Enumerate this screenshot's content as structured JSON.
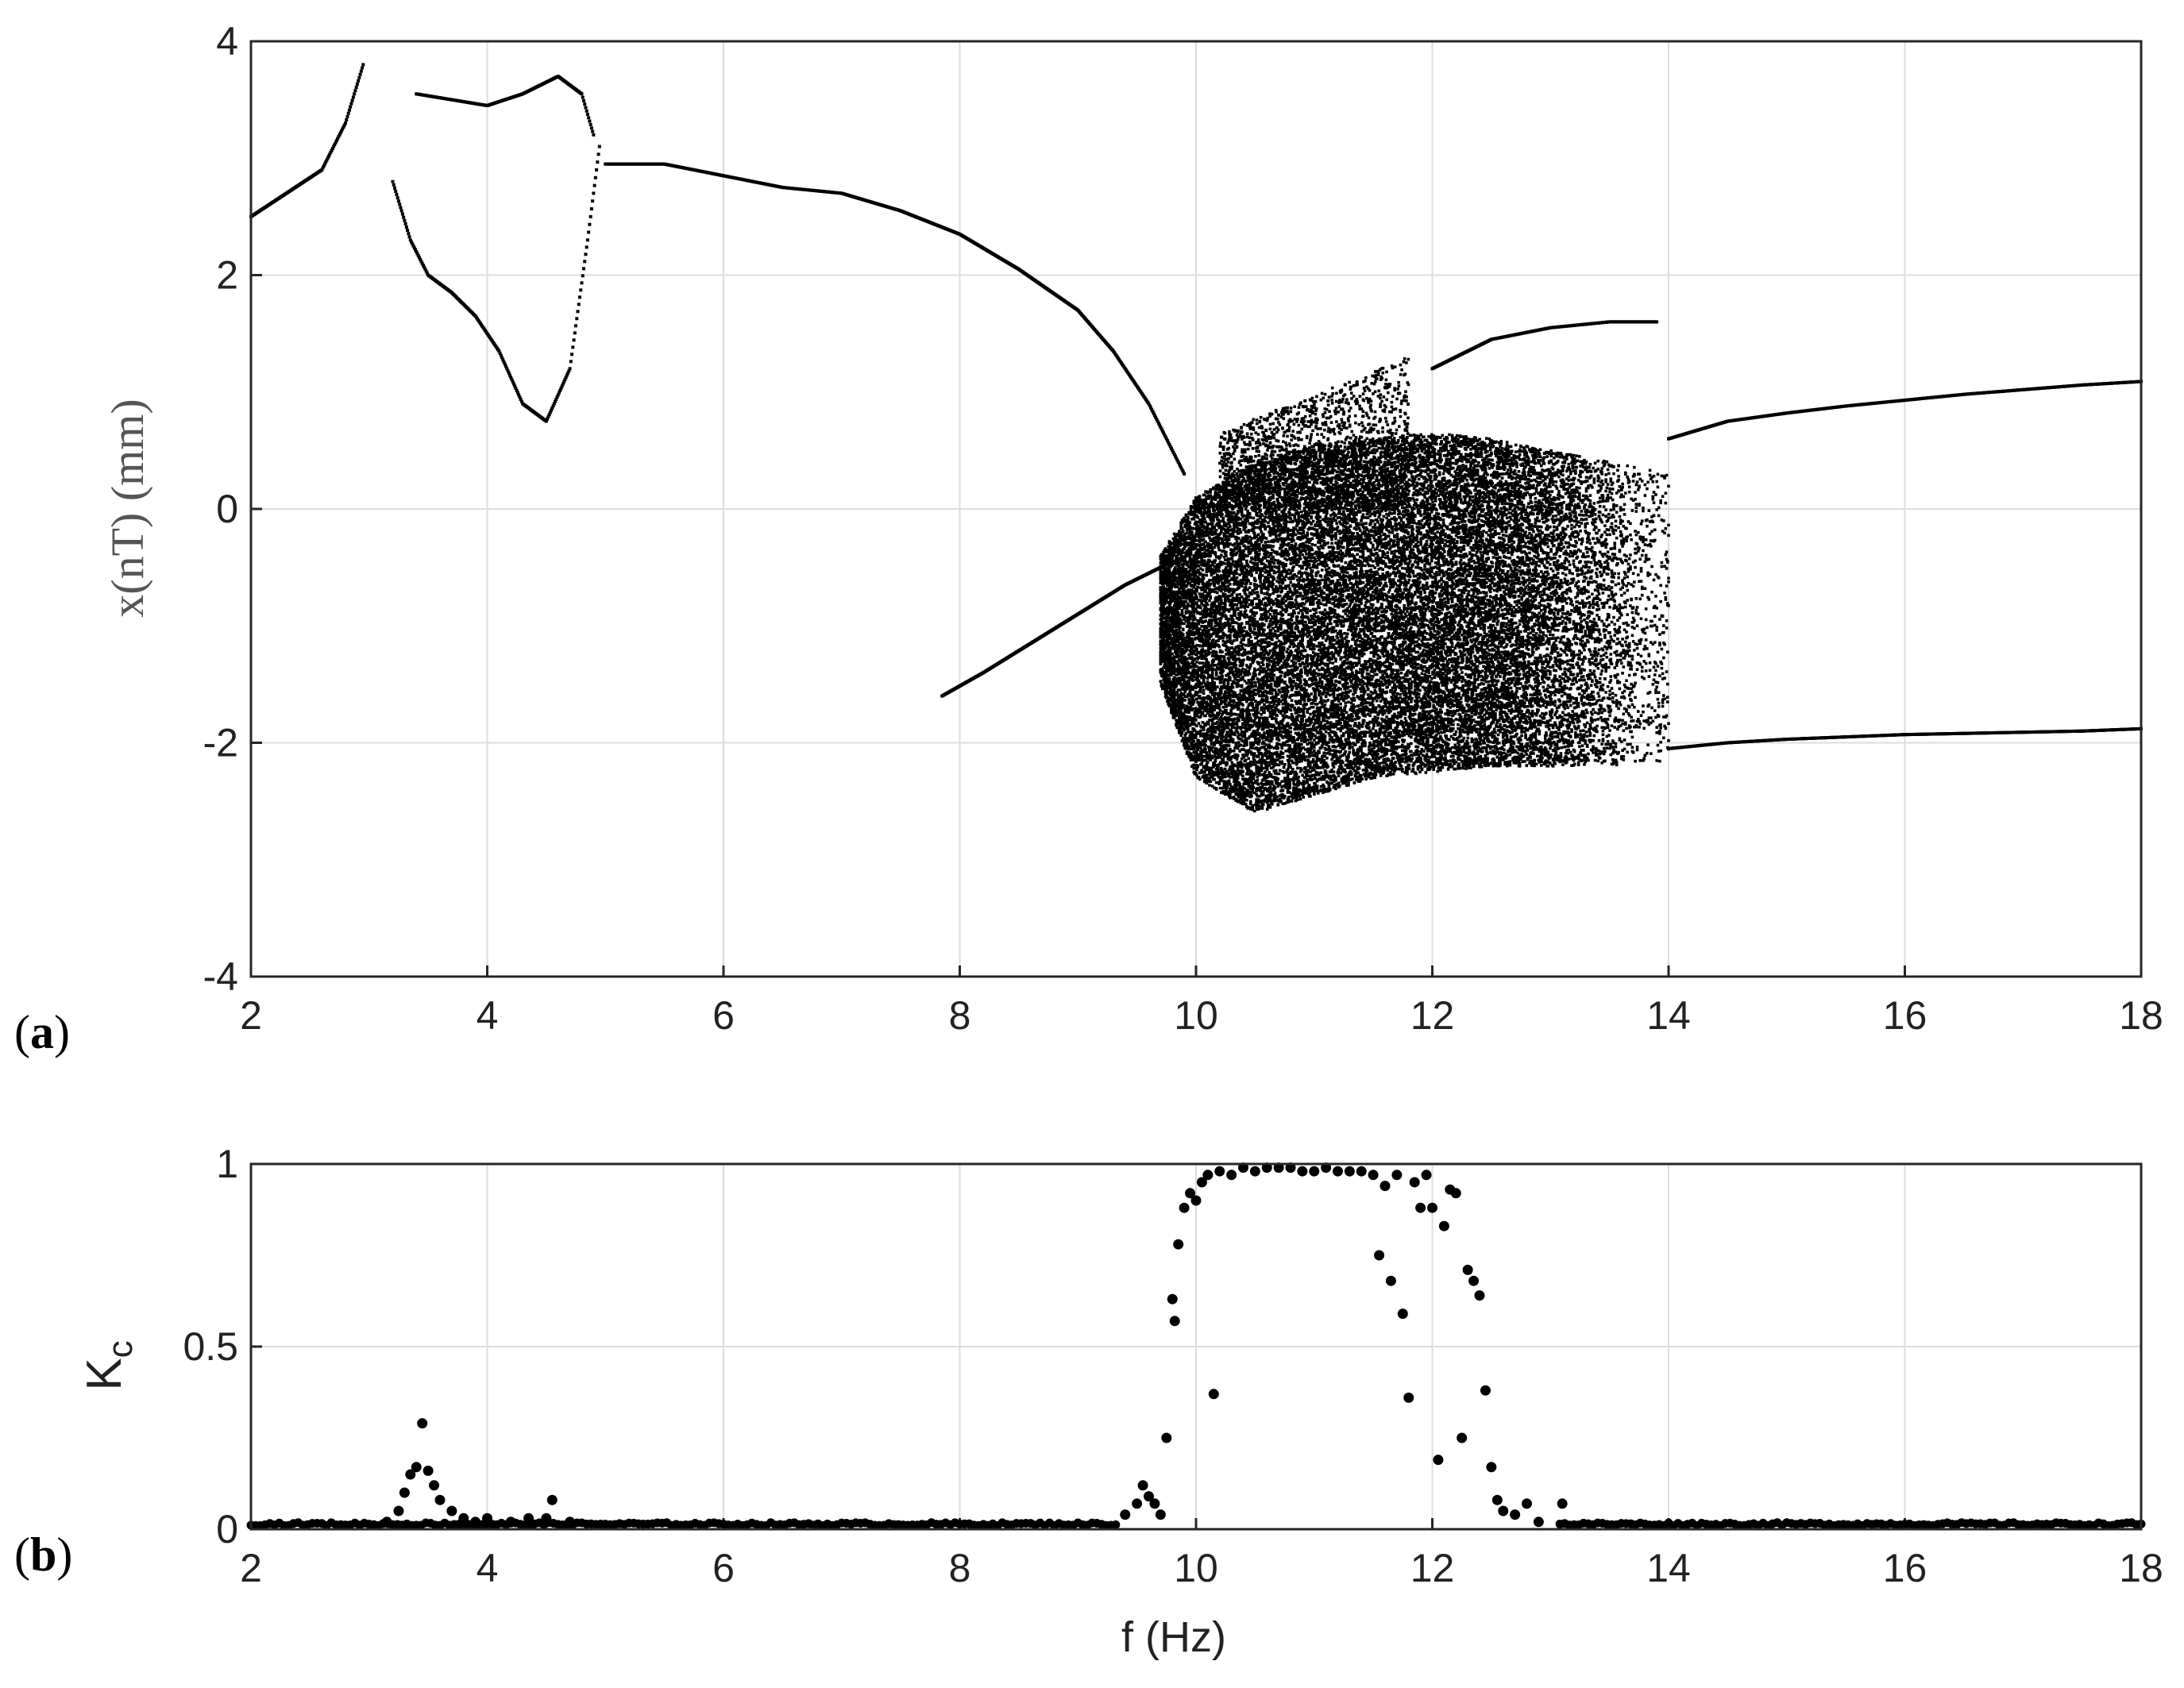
{
  "panels": {
    "a": {
      "tag_open": "(",
      "tag_letter": "a",
      "tag_close": ")",
      "ylabel": "x(nT) (mm)",
      "xlabel": ""
    },
    "b": {
      "tag_open": "(",
      "tag_letter": "b",
      "tag_close": ")",
      "ylabel_main": "K",
      "ylabel_sub": "c",
      "xlabel": "f (Hz)"
    }
  },
  "chart_data": [
    {
      "type": "scatter",
      "panel": "a",
      "title": "",
      "xlabel": "",
      "ylabel": "x(nT) (mm)",
      "xlim": [
        2,
        18
      ],
      "ylim": [
        -4,
        4
      ],
      "x_ticks": [
        2,
        4,
        6,
        8,
        10,
        12,
        14,
        16,
        18
      ],
      "y_ticks": [
        -4,
        -2,
        0,
        2,
        4
      ],
      "grid": true,
      "marker_color": "#000000",
      "branches": [
        {
          "x": [
            2.0,
            2.3,
            2.6,
            2.8,
            2.95
          ],
          "y": [
            2.5,
            2.7,
            2.9,
            3.3,
            3.8
          ]
        },
        {
          "x": [
            3.4,
            3.7,
            4.0,
            4.3,
            4.6,
            4.8,
            4.9
          ],
          "y": [
            3.55,
            3.5,
            3.45,
            3.55,
            3.7,
            3.55,
            3.2
          ]
        },
        {
          "x": [
            3.2,
            3.35,
            3.5,
            3.7,
            3.9,
            4.1,
            4.3,
            4.5,
            4.7,
            4.85,
            4.95
          ],
          "y": [
            2.8,
            2.3,
            2.0,
            1.85,
            1.65,
            1.35,
            0.9,
            0.75,
            1.2,
            2.3,
            3.1
          ]
        },
        {
          "x": [
            5.0,
            5.5,
            6.0,
            6.5,
            7.0,
            7.5,
            8.0,
            8.5,
            9.0,
            9.3,
            9.6,
            9.9
          ],
          "y": [
            2.95,
            2.95,
            2.85,
            2.75,
            2.7,
            2.55,
            2.35,
            2.05,
            1.7,
            1.35,
            0.9,
            0.3
          ]
        },
        {
          "x": [
            7.85,
            8.2,
            8.6,
            9.0,
            9.4,
            9.8
          ],
          "y": [
            -1.6,
            -1.4,
            -1.15,
            -0.9,
            -0.65,
            -0.45
          ]
        },
        {
          "x": [
            12.0,
            12.5,
            13.0,
            13.5,
            13.9
          ],
          "y": [
            1.2,
            1.45,
            1.55,
            1.6,
            1.6
          ]
        },
        {
          "x": [
            14.0,
            14.5,
            15.0,
            15.5,
            16.0,
            16.5,
            17.0,
            17.5,
            18.0
          ],
          "y": [
            0.6,
            0.75,
            0.82,
            0.88,
            0.93,
            0.98,
            1.02,
            1.06,
            1.09
          ]
        },
        {
          "x": [
            14.0,
            14.5,
            15.0,
            15.5,
            16.0,
            16.5,
            17.0,
            17.5,
            18.0
          ],
          "y": [
            -2.05,
            -2.0,
            -1.97,
            -1.95,
            -1.93,
            -1.92,
            -1.91,
            -1.9,
            -1.88
          ]
        }
      ],
      "chaotic_region": {
        "f_range": [
          9.7,
          14.0
        ],
        "upper_envelope": [
          [
            9.7,
            -0.4
          ],
          [
            10.0,
            0.1
          ],
          [
            10.5,
            0.4
          ],
          [
            11.0,
            0.55
          ],
          [
            11.5,
            0.6
          ],
          [
            12.0,
            0.65
          ],
          [
            12.5,
            0.6
          ],
          [
            13.0,
            0.5
          ],
          [
            13.5,
            0.4
          ],
          [
            14.0,
            0.3
          ]
        ],
        "lower_envelope": [
          [
            9.7,
            -1.5
          ],
          [
            10.0,
            -2.3
          ],
          [
            10.5,
            -2.6
          ],
          [
            11.0,
            -2.45
          ],
          [
            11.5,
            -2.3
          ],
          [
            12.0,
            -2.25
          ],
          [
            12.5,
            -2.2
          ],
          [
            13.0,
            -2.2
          ],
          [
            13.5,
            -2.2
          ],
          [
            14.0,
            -2.15
          ]
        ],
        "island": {
          "f_range": [
            10.2,
            11.8
          ],
          "y_range": [
            0.0,
            1.3
          ]
        }
      }
    },
    {
      "type": "scatter",
      "panel": "b",
      "title": "",
      "xlabel": "f (Hz)",
      "ylabel": "Kc",
      "xlim": [
        2,
        18
      ],
      "ylim": [
        0,
        1
      ],
      "x_ticks": [
        2,
        4,
        6,
        8,
        10,
        12,
        14,
        16,
        18
      ],
      "y_ticks": [
        0,
        0.5,
        1
      ],
      "grid": true,
      "marker_color": "#000000",
      "points": {
        "x": [
          3.15,
          3.25,
          3.3,
          3.35,
          3.4,
          3.45,
          3.5,
          3.55,
          3.6,
          3.7,
          3.8,
          3.9,
          4.0,
          4.2,
          4.35,
          4.5,
          4.55,
          4.7,
          9.4,
          9.5,
          9.55,
          9.6,
          9.65,
          9.7,
          9.75,
          9.8,
          9.82,
          9.85,
          9.9,
          9.95,
          10.0,
          10.05,
          10.1,
          10.15,
          10.2,
          10.3,
          10.4,
          10.5,
          10.6,
          10.7,
          10.8,
          10.9,
          11.0,
          11.1,
          11.2,
          11.3,
          11.4,
          11.5,
          11.55,
          11.6,
          11.65,
          11.7,
          11.75,
          11.8,
          11.85,
          11.9,
          11.95,
          12.0,
          12.05,
          12.1,
          12.15,
          12.2,
          12.25,
          12.3,
          12.35,
          12.4,
          12.45,
          12.5,
          12.55,
          12.6,
          12.7,
          12.8,
          12.9,
          13.1
        ],
        "y": [
          0.02,
          0.05,
          0.1,
          0.15,
          0.17,
          0.29,
          0.16,
          0.12,
          0.08,
          0.05,
          0.03,
          0.02,
          0.03,
          0.02,
          0.03,
          0.03,
          0.08,
          0.02,
          0.04,
          0.07,
          0.12,
          0.09,
          0.07,
          0.04,
          0.25,
          0.63,
          0.57,
          0.78,
          0.88,
          0.92,
          0.9,
          0.95,
          0.97,
          0.37,
          0.98,
          0.97,
          0.99,
          0.98,
          0.99,
          0.99,
          0.99,
          0.98,
          0.98,
          0.99,
          0.98,
          0.98,
          0.98,
          0.97,
          0.75,
          0.94,
          0.68,
          0.97,
          0.59,
          0.36,
          0.95,
          0.88,
          0.97,
          0.88,
          0.19,
          0.83,
          0.93,
          0.92,
          0.25,
          0.71,
          0.68,
          0.64,
          0.38,
          0.17,
          0.08,
          0.05,
          0.04,
          0.07,
          0.02,
          0.07
        ],
        "baseline_y": 0.01
      }
    }
  ]
}
